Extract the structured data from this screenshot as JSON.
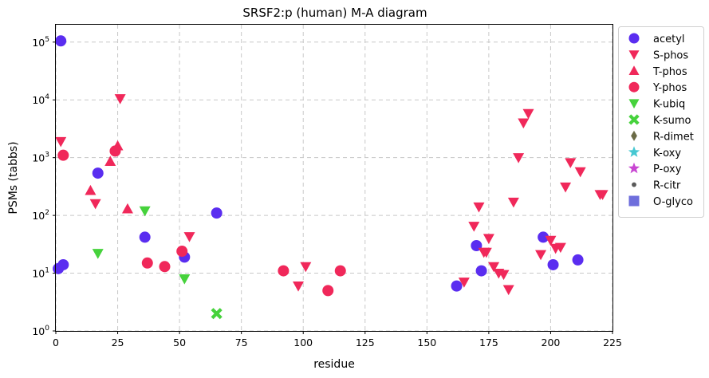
{
  "chart_data": {
    "type": "scatter",
    "title": "SRSF2:p (human) M-A diagram",
    "xlabel": "residue",
    "ylabel": "PSMs (tabbs)",
    "xlim": [
      0,
      225
    ],
    "ylim": [
      1,
      200000
    ],
    "yscale": "log",
    "grid": true,
    "legend_position": "outside-right",
    "x_ticks": [
      0,
      25,
      50,
      75,
      100,
      125,
      150,
      175,
      200,
      225
    ],
    "y_ticks": [
      {
        "value": 1,
        "label_base": "10",
        "label_exp": "0"
      },
      {
        "value": 10,
        "label_base": "10",
        "label_exp": "1"
      },
      {
        "value": 100,
        "label_base": "10",
        "label_exp": "2"
      },
      {
        "value": 1000,
        "label_base": "10",
        "label_exp": "3"
      },
      {
        "value": 10000,
        "label_base": "10",
        "label_exp": "4"
      },
      {
        "value": 100000,
        "label_base": "10",
        "label_exp": "5"
      }
    ],
    "series": [
      {
        "name": "acetyl",
        "marker": "circle",
        "color": "#5a2df0",
        "points": [
          [
            2,
            105000
          ],
          [
            1,
            12
          ],
          [
            3,
            14
          ],
          [
            17,
            540
          ],
          [
            36,
            42
          ],
          [
            52,
            19
          ],
          [
            65,
            110
          ],
          [
            162,
            6
          ],
          [
            170,
            30
          ],
          [
            172,
            11
          ],
          [
            197,
            42
          ],
          [
            201,
            14
          ],
          [
            211,
            17
          ]
        ]
      },
      {
        "name": "S-phos",
        "marker": "triangle-down",
        "color": "#f0285a",
        "points": [
          [
            2,
            1900
          ],
          [
            16,
            160
          ],
          [
            26,
            10500
          ],
          [
            54,
            43
          ],
          [
            98,
            6
          ],
          [
            101,
            13
          ],
          [
            165,
            7
          ],
          [
            169,
            65
          ],
          [
            171,
            140
          ],
          [
            173,
            23
          ],
          [
            174,
            23
          ],
          [
            175,
            40
          ],
          [
            177,
            13
          ],
          [
            179,
            10
          ],
          [
            181,
            9.5
          ],
          [
            183,
            5.2
          ],
          [
            185,
            170
          ],
          [
            187,
            1000
          ],
          [
            189,
            4000
          ],
          [
            191,
            5800
          ],
          [
            196,
            21
          ],
          [
            200,
            37
          ],
          [
            202,
            27
          ],
          [
            204,
            28
          ],
          [
            206,
            310
          ],
          [
            208,
            820
          ],
          [
            212,
            570
          ],
          [
            220,
            230
          ],
          [
            221,
            230
          ]
        ]
      },
      {
        "name": "T-phos",
        "marker": "triangle-up",
        "color": "#f0285a",
        "points": [
          [
            14,
            270
          ],
          [
            22,
            860
          ],
          [
            25,
            1600
          ],
          [
            29,
            130
          ]
        ]
      },
      {
        "name": "Y-phos",
        "marker": "circle",
        "color": "#f0285a",
        "points": [
          [
            3,
            1100
          ],
          [
            24,
            1300
          ],
          [
            37,
            15
          ],
          [
            44,
            13
          ],
          [
            51,
            24
          ],
          [
            92,
            11
          ],
          [
            110,
            5
          ],
          [
            115,
            11
          ]
        ]
      },
      {
        "name": "K-ubiq",
        "marker": "triangle-down",
        "color": "#46d23c",
        "points": [
          [
            17,
            22
          ],
          [
            36,
            120
          ],
          [
            52,
            8
          ]
        ]
      },
      {
        "name": "K-sumo",
        "marker": "x",
        "color": "#46d23c",
        "points": [
          [
            65,
            2
          ]
        ]
      },
      {
        "name": "R-dimet",
        "marker": "diamond",
        "color": "#6b6b46",
        "points": []
      },
      {
        "name": "K-oxy",
        "marker": "star",
        "color": "#46c8d2",
        "points": []
      },
      {
        "name": "P-oxy",
        "marker": "star",
        "color": "#c846d2",
        "points": []
      },
      {
        "name": "R-citr",
        "marker": "small-circle",
        "color": "#5a5a5a",
        "points": []
      },
      {
        "name": "O-glyco",
        "marker": "square",
        "color": "#6e6edc",
        "points": []
      }
    ]
  }
}
